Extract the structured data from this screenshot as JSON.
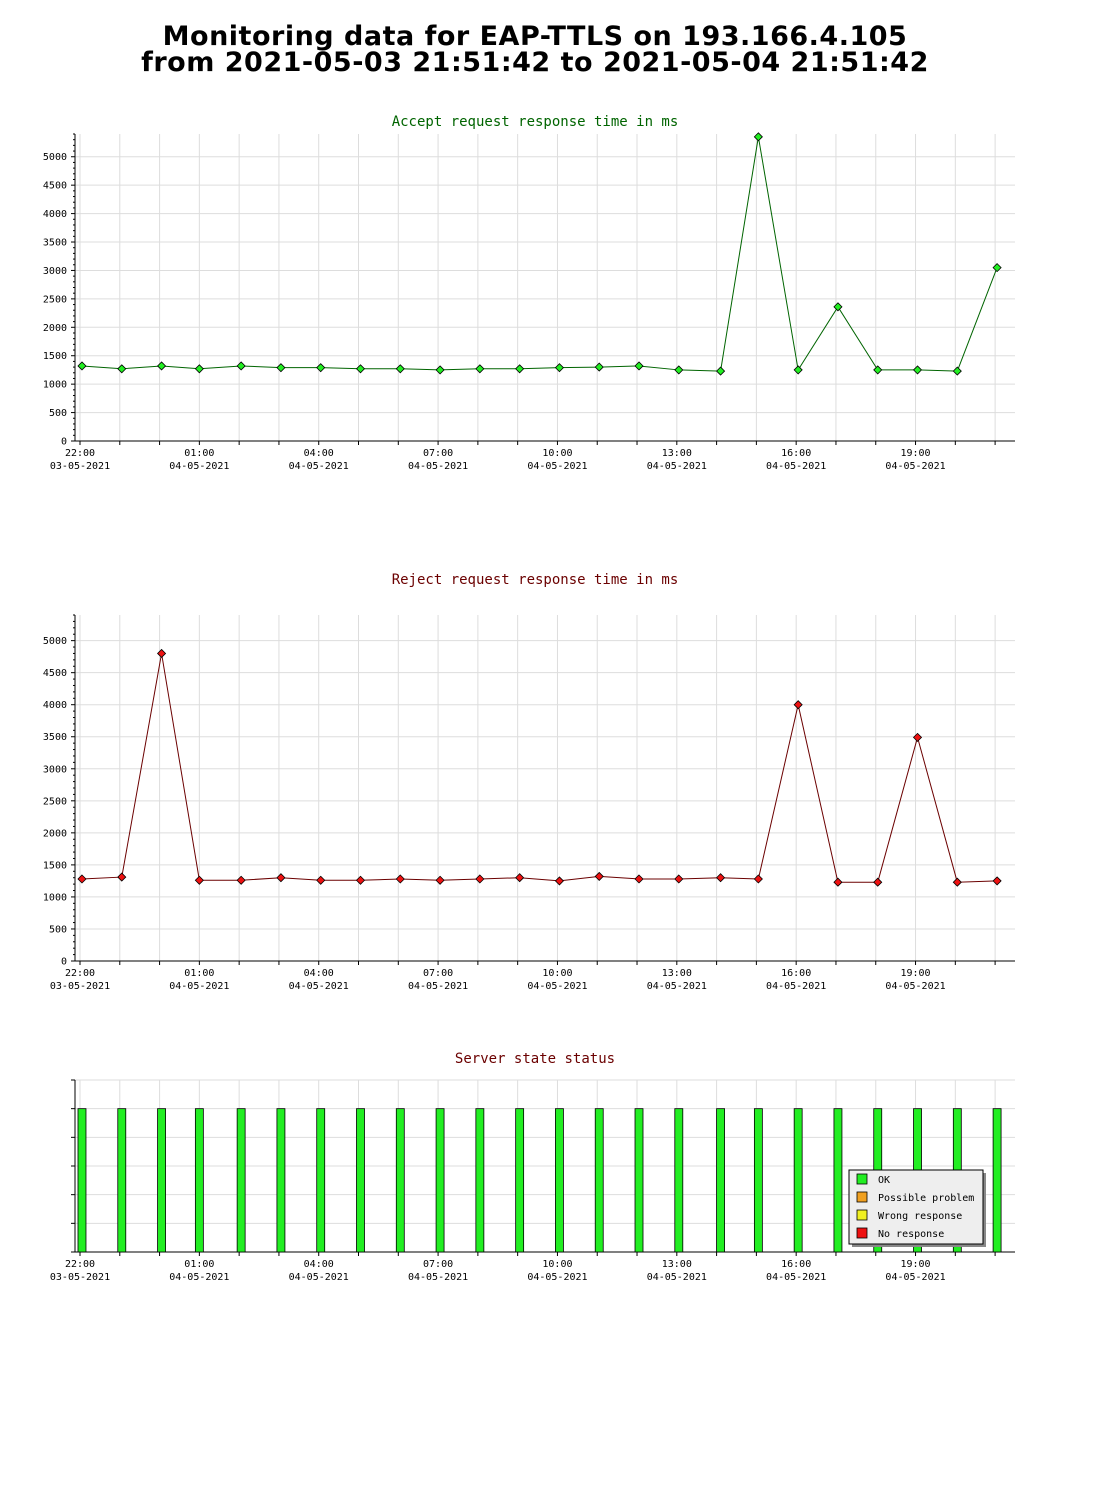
{
  "page": {
    "title_line1": "Monitoring data for EAP-TTLS on 193.166.4.105",
    "title_line2": "from 2021-05-03 21:51:42 to 2021-05-04 21:51:42"
  },
  "colors": {
    "accept_line": "#006400",
    "accept_marker": "#22ee22",
    "reject_line": "#6b0000",
    "reject_marker": "#ee1111",
    "grid": "#dddddd",
    "ok": "#22ee22",
    "possible_problem": "#f0a020",
    "wrong_response": "#f0f020",
    "no_response": "#ee1111"
  },
  "chart_data": [
    {
      "id": "accept",
      "type": "line",
      "title": "Accept request response time in ms",
      "title_color": "#006400",
      "ylim": [
        0,
        5400
      ],
      "yticks": [
        0,
        500,
        1000,
        1500,
        2000,
        2500,
        3000,
        3500,
        4000,
        4500,
        5000
      ],
      "grid": true,
      "x_hours": [
        0.05,
        1.05,
        2.05,
        3.0,
        4.05,
        5.05,
        6.05,
        7.05,
        8.05,
        9.05,
        10.05,
        11.05,
        12.05,
        13.05,
        14.05,
        15.05,
        16.1,
        17.05,
        18.05,
        19.05,
        20.05,
        21.05,
        22.05,
        23.05
      ],
      "values": [
        1320,
        1270,
        1320,
        1270,
        1320,
        1290,
        1290,
        1270,
        1270,
        1250,
        1270,
        1270,
        1290,
        1300,
        1320,
        1250,
        1230,
        5350,
        1250,
        2360,
        1250,
        1250,
        1230,
        3050
      ],
      "series": [
        {
          "name": "Accept request response time"
        }
      ]
    },
    {
      "id": "reject",
      "type": "line",
      "title": "Reject request response time in ms",
      "title_color": "#6b0000",
      "ylim": [
        0,
        5400
      ],
      "yticks": [
        0,
        500,
        1000,
        1500,
        2000,
        2500,
        3000,
        3500,
        4000,
        4500,
        5000
      ],
      "grid": true,
      "x_hours": [
        0.05,
        1.05,
        2.05,
        3.0,
        4.05,
        5.05,
        6.05,
        7.05,
        8.05,
        9.05,
        10.05,
        11.05,
        12.05,
        13.05,
        14.05,
        15.05,
        16.1,
        17.05,
        18.05,
        19.05,
        20.05,
        21.05,
        22.05,
        23.05
      ],
      "values": [
        1280,
        1310,
        4800,
        1260,
        1260,
        1300,
        1260,
        1260,
        1280,
        1260,
        1280,
        1300,
        1250,
        1320,
        1280,
        1280,
        1300,
        1280,
        4000,
        1230,
        1230,
        3490,
        1230,
        1250
      ],
      "series": [
        {
          "name": "Reject request response time"
        }
      ]
    },
    {
      "id": "status",
      "type": "bar",
      "title": "Server state status",
      "title_color": "#6b0000",
      "x_hours": [
        0.05,
        1.05,
        2.05,
        3.0,
        4.05,
        5.05,
        6.05,
        7.05,
        8.05,
        9.05,
        10.05,
        11.05,
        12.05,
        13.05,
        14.05,
        15.05,
        16.1,
        17.05,
        18.05,
        19.05,
        20.05,
        21.05,
        22.05,
        23.05
      ],
      "states": [
        "OK",
        "OK",
        "OK",
        "OK",
        "OK",
        "OK",
        "OK",
        "OK",
        "OK",
        "OK",
        "OK",
        "OK",
        "OK",
        "OK",
        "OK",
        "OK",
        "OK",
        "OK",
        "OK",
        "OK",
        "OK",
        "OK",
        "OK",
        "OK"
      ],
      "level": 5,
      "ymax": 6,
      "legend": [
        "OK",
        "Possible problem",
        "Wrong response",
        "No response"
      ],
      "legend_colors": [
        "#22ee22",
        "#f0a020",
        "#f0f020",
        "#ee1111"
      ],
      "legend_position": "bottom-right"
    }
  ],
  "x_axis": {
    "start_label_hour": "22:00",
    "labels": [
      {
        "hour": 0,
        "time": "22:00",
        "date": "03-05-2021"
      },
      {
        "hour": 3,
        "time": "01:00",
        "date": "04-05-2021"
      },
      {
        "hour": 6,
        "time": "04:00",
        "date": "04-05-2021"
      },
      {
        "hour": 9,
        "time": "07:00",
        "date": "04-05-2021"
      },
      {
        "hour": 12,
        "time": "10:00",
        "date": "04-05-2021"
      },
      {
        "hour": 15,
        "time": "13:00",
        "date": "04-05-2021"
      },
      {
        "hour": 18,
        "time": "16:00",
        "date": "04-05-2021"
      },
      {
        "hour": 21,
        "time": "19:00",
        "date": "04-05-2021"
      }
    ]
  }
}
